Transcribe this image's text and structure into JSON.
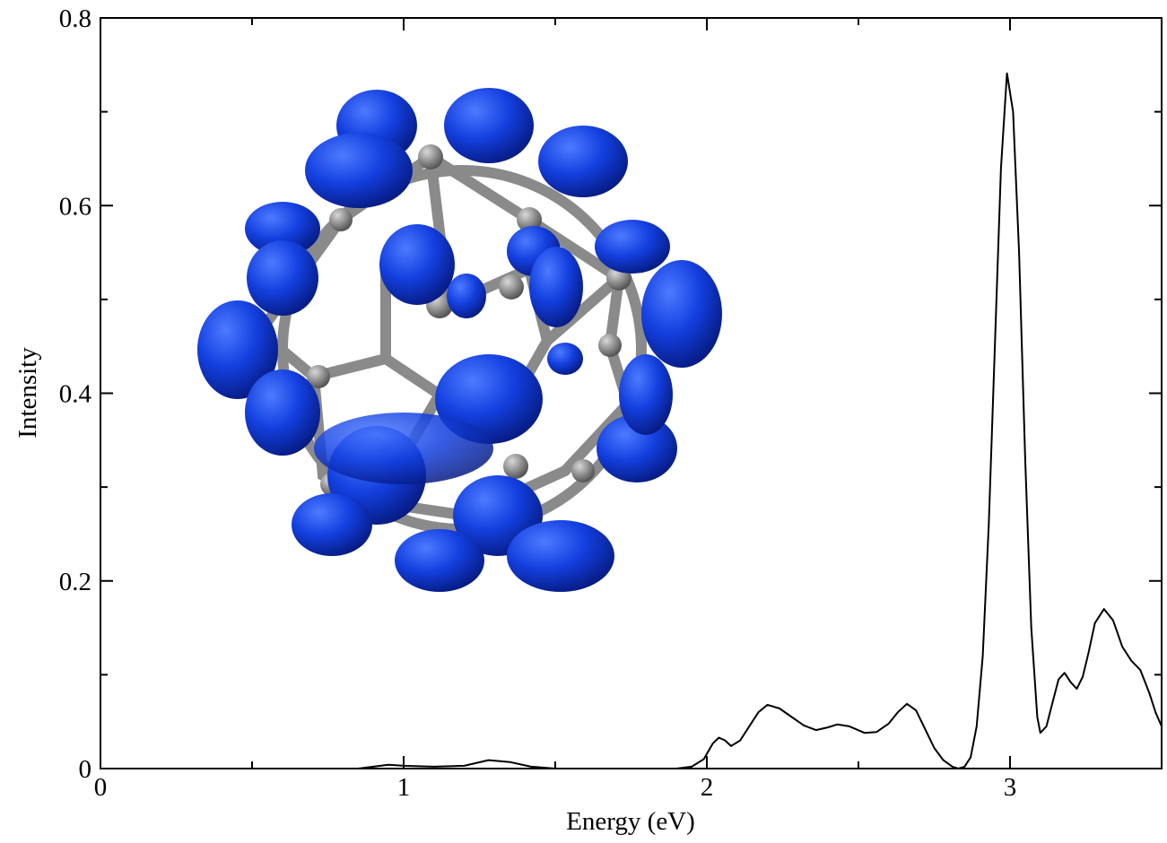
{
  "chart_data": {
    "type": "line",
    "xlabel": "Energy (eV)",
    "ylabel": "Intensity",
    "x": [
      0,
      0.5,
      0.85,
      0.9,
      0.95,
      1.0,
      1.1,
      1.2,
      1.28,
      1.35,
      1.42,
      1.5,
      1.9,
      1.95,
      1.99,
      2.02,
      2.04,
      2.06,
      2.08,
      2.11,
      2.14,
      2.17,
      2.2,
      2.24,
      2.28,
      2.32,
      2.36,
      2.4,
      2.43,
      2.47,
      2.52,
      2.56,
      2.6,
      2.63,
      2.66,
      2.69,
      2.72,
      2.75,
      2.78,
      2.81,
      2.83,
      2.85,
      2.87,
      2.89,
      2.91,
      2.93,
      2.95,
      2.97,
      2.99,
      3.01,
      3.03,
      3.05,
      3.07,
      3.09,
      3.1,
      3.12,
      3.14,
      3.16,
      3.18,
      3.2,
      3.22,
      3.24,
      3.26,
      3.28,
      3.31,
      3.34,
      3.37,
      3.4,
      3.43,
      3.46,
      3.48,
      3.5
    ],
    "values": [
      0,
      0,
      0,
      0.002,
      0.004,
      0.003,
      0.002,
      0.003,
      0.009,
      0.007,
      0.002,
      0,
      0,
      0.002,
      0.01,
      0.027,
      0.033,
      0.03,
      0.024,
      0.03,
      0.045,
      0.06,
      0.068,
      0.064,
      0.055,
      0.046,
      0.041,
      0.044,
      0.047,
      0.045,
      0.038,
      0.039,
      0.048,
      0.06,
      0.069,
      0.062,
      0.042,
      0.022,
      0.009,
      0.002,
      0.0,
      0.002,
      0.012,
      0.045,
      0.12,
      0.26,
      0.45,
      0.64,
      0.741,
      0.7,
      0.55,
      0.33,
      0.15,
      0.055,
      0.038,
      0.045,
      0.07,
      0.095,
      0.102,
      0.092,
      0.085,
      0.098,
      0.125,
      0.155,
      0.17,
      0.158,
      0.13,
      0.115,
      0.105,
      0.08,
      0.06,
      0.045
    ],
    "color": "#000000",
    "xlim": [
      0,
      3.5
    ],
    "xticks": [
      0,
      1,
      2,
      3
    ],
    "xminor_ticks": [
      0.5,
      1.5,
      2.5
    ],
    "ylim": [
      0,
      0.8
    ],
    "yticks": [
      0,
      0.2,
      0.4,
      0.6,
      0.8
    ],
    "yminor_ticks": [
      0.1,
      0.3,
      0.5,
      0.7
    ]
  }
}
